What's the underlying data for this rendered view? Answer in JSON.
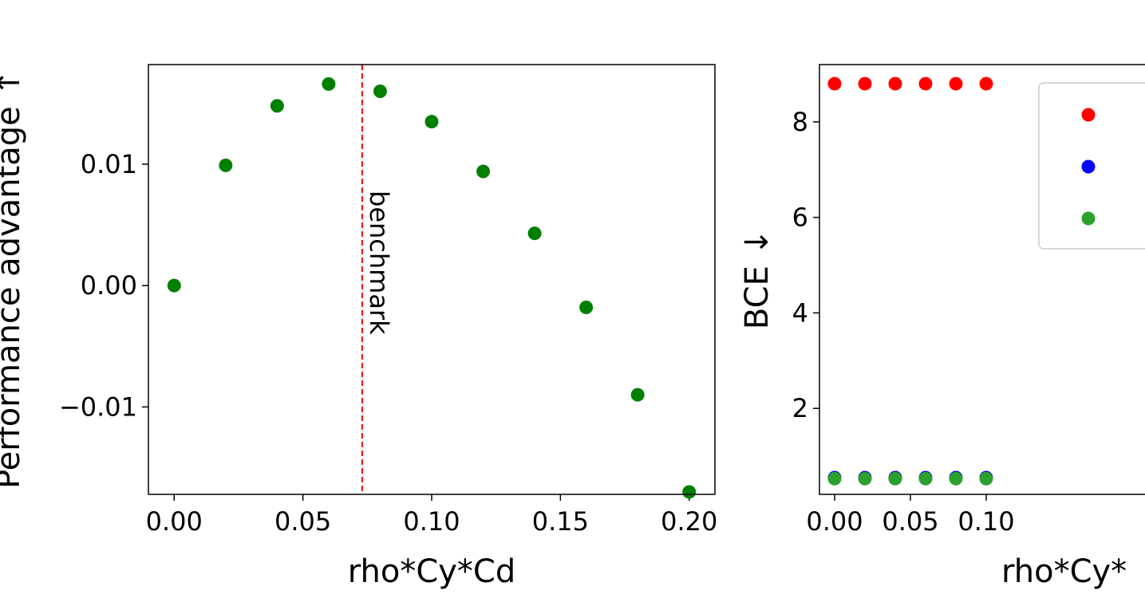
{
  "chart_data": [
    {
      "type": "scatter",
      "title": "",
      "xlabel": "rho*Cy*Cd",
      "ylabel": "Performance advantage ↑",
      "xlim": [
        -0.01,
        0.21
      ],
      "ylim": [
        -0.0172,
        0.0182
      ],
      "xticks": [
        0.0,
        0.05,
        0.1,
        0.15,
        0.2
      ],
      "xtick_labels": [
        "0.00",
        "0.05",
        "0.10",
        "0.15",
        "0.20"
      ],
      "yticks": [
        -0.01,
        0.0,
        0.01
      ],
      "ytick_labels": [
        "−0.01",
        "0.00",
        "0.01"
      ],
      "series": [
        {
          "color": "#008000",
          "x": [
            0.0,
            0.02,
            0.04,
            0.06,
            0.08,
            0.1,
            0.12,
            0.14,
            0.16,
            0.18,
            0.2
          ],
          "y": [
            0.0,
            0.0099,
            0.0148,
            0.0166,
            0.016,
            0.0135,
            0.0094,
            0.0043,
            -0.0018,
            -0.009,
            -0.017
          ]
        }
      ],
      "vline": {
        "x": 0.073,
        "color": "#ff0000",
        "label": "benchmark"
      },
      "grid": false
    },
    {
      "type": "scatter",
      "title": "",
      "xlabel": "rho*Cy*",
      "ylabel": "BCE ↓",
      "xlim": [
        -0.01,
        0.21
      ],
      "ylim": [
        0.2,
        9.2
      ],
      "xticks": [
        0.0,
        0.05,
        0.1
      ],
      "xtick_labels": [
        "0.00",
        "0.05",
        "0.10"
      ],
      "yticks": [
        2,
        4,
        6,
        8
      ],
      "ytick_labels": [
        "2",
        "4",
        "6",
        "8"
      ],
      "series": [
        {
          "color": "#ff0000",
          "x": [
            0.0,
            0.02,
            0.04,
            0.06,
            0.08,
            0.1
          ],
          "y": [
            8.8,
            8.8,
            8.8,
            8.8,
            8.8,
            8.8
          ]
        },
        {
          "color": "#0000ff",
          "x": [
            0.0,
            0.02,
            0.04,
            0.06,
            0.08,
            0.1
          ],
          "y": [
            0.55,
            0.55,
            0.55,
            0.55,
            0.55,
            0.55
          ]
        },
        {
          "color": "#2ca02c",
          "x": [
            0.0,
            0.02,
            0.04,
            0.06,
            0.08,
            0.1
          ],
          "y": [
            0.53,
            0.53,
            0.53,
            0.53,
            0.53,
            0.53
          ]
        }
      ],
      "legend": {
        "placement": "top-right",
        "entries": [
          "",
          "",
          ""
        ]
      },
      "grid": false
    }
  ]
}
